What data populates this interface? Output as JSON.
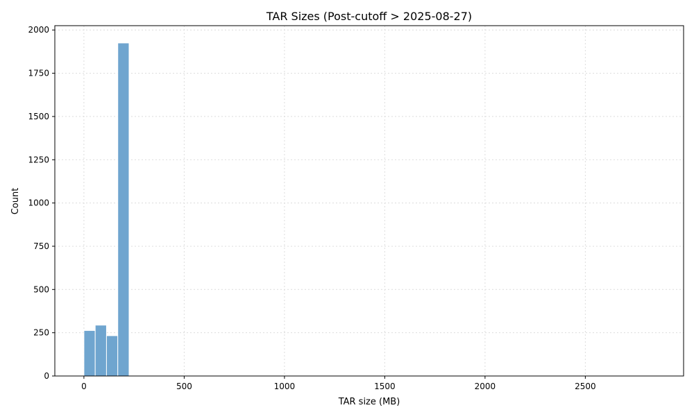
{
  "chart_data": {
    "type": "bar",
    "title": "TAR Sizes (Post-cutoff > 2025-08-27)",
    "xlabel": "TAR size (MB)",
    "ylabel": "Count",
    "xlim": [
      -145,
      2990
    ],
    "ylim": [
      0,
      2025
    ],
    "xticks": [
      0,
      500,
      1000,
      1500,
      2000,
      2500
    ],
    "xtick_labels": [
      "0",
      "500",
      "1000",
      "1500",
      "2000",
      "2500"
    ],
    "yticks": [
      0,
      250,
      500,
      750,
      1000,
      1250,
      1500,
      1750,
      2000
    ],
    "ytick_labels": [
      "0",
      "250",
      "500",
      "750",
      "1000",
      "1250",
      "1500",
      "1750",
      "2000"
    ],
    "grid": true,
    "bin_width": 56.3,
    "bins": [
      {
        "x0": 0,
        "x1": 56.3,
        "count": 263
      },
      {
        "x0": 56.3,
        "x1": 112.6,
        "count": 294
      },
      {
        "x0": 112.6,
        "x1": 168.9,
        "count": 233
      },
      {
        "x0": 168.9,
        "x1": 225.2,
        "count": 1925
      },
      {
        "x0": 337.8,
        "x1": 394.1,
        "count": 3
      },
      {
        "x0": 394.1,
        "x1": 450.4,
        "count": 1
      }
    ],
    "colors": {
      "bar_fill": "#6fa5cf",
      "bar_edge": "#ffffff",
      "grid": "#dcdcdc",
      "axis": "#000000"
    }
  }
}
